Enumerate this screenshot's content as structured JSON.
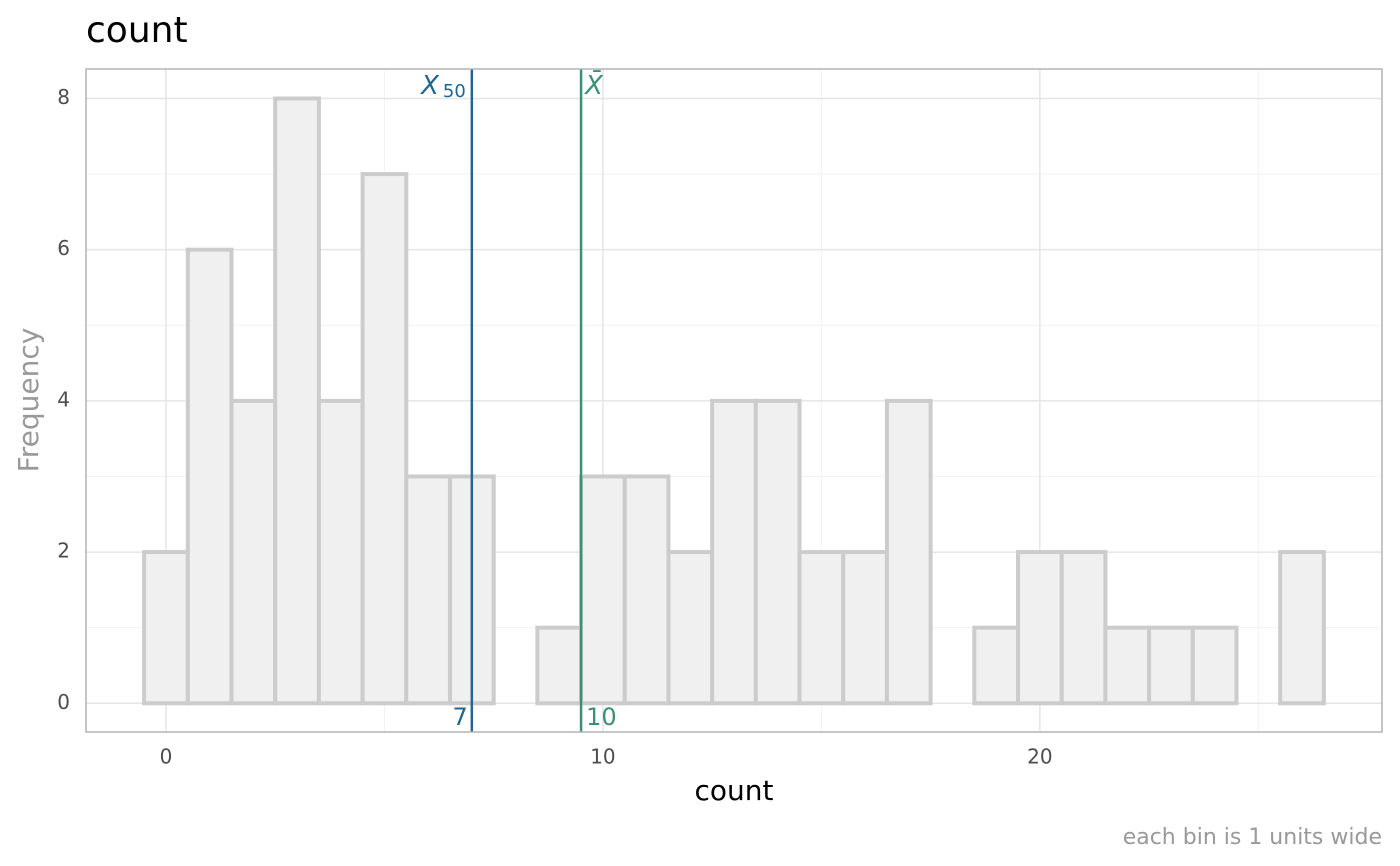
{
  "chart_data": {
    "type": "histogram",
    "title": "count",
    "x_label": "count",
    "y_label": "Frequency",
    "caption": "each bin is 1 units wide",
    "bins": [
      -0.5,
      0.5,
      1.5,
      2.5,
      3.5,
      4.5,
      5.5,
      6.5,
      7.5,
      8.5,
      9.5,
      10.5,
      11.5,
      12.5,
      13.5,
      14.5,
      15.5,
      16.5,
      17.5,
      18.5,
      19.5,
      20.5,
      21.5,
      22.5,
      23.5,
      24.5,
      25.5,
      26.5
    ],
    "values": [
      2,
      6,
      4,
      8,
      4,
      7,
      3,
      3,
      0,
      1,
      3,
      3,
      2,
      4,
      4,
      2,
      2,
      4,
      0,
      1,
      2,
      2,
      1,
      1,
      1,
      0,
      2
    ],
    "fill": "#f0f0f0",
    "color": "#cccccc",
    "xlim": [
      -1.83,
      27.83
    ],
    "ylim": [
      -0.38,
      8.39
    ],
    "xticks": [
      0,
      10,
      20
    ],
    "yticks": [
      0,
      2,
      4,
      6,
      8
    ],
    "x_minor_ticks": [
      5,
      15,
      25
    ],
    "y_minor_ticks": [
      1,
      3,
      5,
      7
    ],
    "grid": true,
    "reference_lines": [
      {
        "label": "X",
        "subscript": "50",
        "value": 7,
        "value_label": "7",
        "color": "#21668f",
        "side": "left"
      },
      {
        "label": "X̄",
        "value": 9.5,
        "value_label": "10",
        "color": "#3a9174",
        "side": "right"
      }
    ]
  }
}
